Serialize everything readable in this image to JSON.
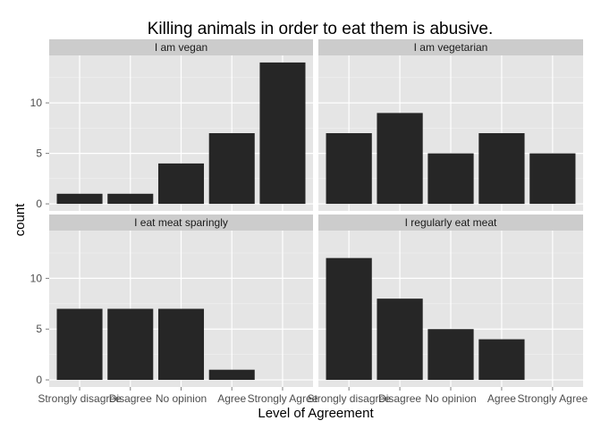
{
  "chart_data": {
    "type": "bar",
    "title": "Killing animals in order to eat them is abusive.",
    "xlabel": "Level of Agreement",
    "ylabel": "count",
    "categories": [
      "Strongly disagree",
      "Disagree",
      "No opinion",
      "Agree",
      "Strongly Agree"
    ],
    "ylim": [
      -0.7,
      14.7
    ],
    "yticks": [
      0,
      5,
      10
    ],
    "grid": true,
    "colors": {
      "panel_bg": "#e5e5e5",
      "strip_bg": "#cccccc",
      "bar": "#262626",
      "grid_major": "#ffffff",
      "grid_minor": "#f2f2f2"
    },
    "panels": [
      {
        "name": "I am vegan",
        "values": [
          1,
          1,
          4,
          7,
          14
        ]
      },
      {
        "name": "I am vegetarian",
        "values": [
          7,
          9,
          5,
          7,
          5
        ]
      },
      {
        "name": "I eat meat sparingly",
        "values": [
          7,
          7,
          7,
          1,
          0
        ]
      },
      {
        "name": "I regularly eat meat",
        "values": [
          12,
          8,
          5,
          4,
          0
        ]
      }
    ]
  }
}
